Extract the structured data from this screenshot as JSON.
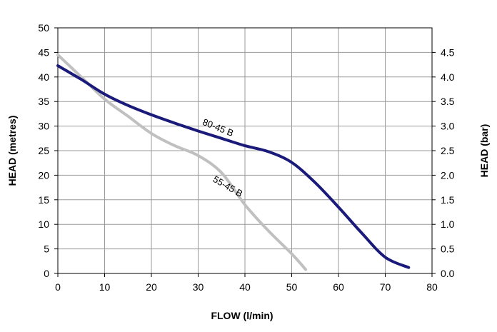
{
  "chart_data": {
    "type": "line",
    "xlabel": "FLOW (l/min)",
    "ylabel": "HEAD (metres)",
    "y2label": "HEAD (bar)",
    "xlim": [
      0,
      80
    ],
    "ylim": [
      0,
      50
    ],
    "y2lim": [
      0,
      5
    ],
    "xticks": [
      "0",
      "10",
      "20",
      "30",
      "40",
      "50",
      "60",
      "70",
      "80"
    ],
    "yticks": [
      "0",
      "5",
      "10",
      "15",
      "20",
      "25",
      "30",
      "35",
      "40",
      "45",
      "50"
    ],
    "y2ticks": [
      "0.0",
      "0.5",
      "1.0",
      "1.5",
      "2.0",
      "2.5",
      "3.0",
      "3.5",
      "4.0",
      "4.5"
    ],
    "grid": true,
    "legend": "none",
    "series": [
      {
        "name": "80-45 B",
        "color": "#1a1a7a",
        "x": [
          0,
          5,
          10,
          15,
          20,
          25,
          30,
          35,
          40,
          45,
          50,
          55,
          60,
          65,
          70,
          75
        ],
        "y": [
          42.3,
          39.5,
          36.5,
          34.2,
          32.3,
          30.6,
          29.0,
          27.5,
          26.0,
          24.8,
          22.6,
          18.5,
          13.5,
          8.2,
          3.3,
          1.2
        ]
      },
      {
        "name": "55-45 B",
        "color": "#c0c0c0",
        "x": [
          0,
          5,
          10,
          15,
          20,
          25,
          30,
          35,
          40,
          45,
          50,
          53
        ],
        "y": [
          44.5,
          40.0,
          35.5,
          32.0,
          28.5,
          26.0,
          24.0,
          20.5,
          14.0,
          8.7,
          4.0,
          0.8
        ]
      }
    ]
  }
}
